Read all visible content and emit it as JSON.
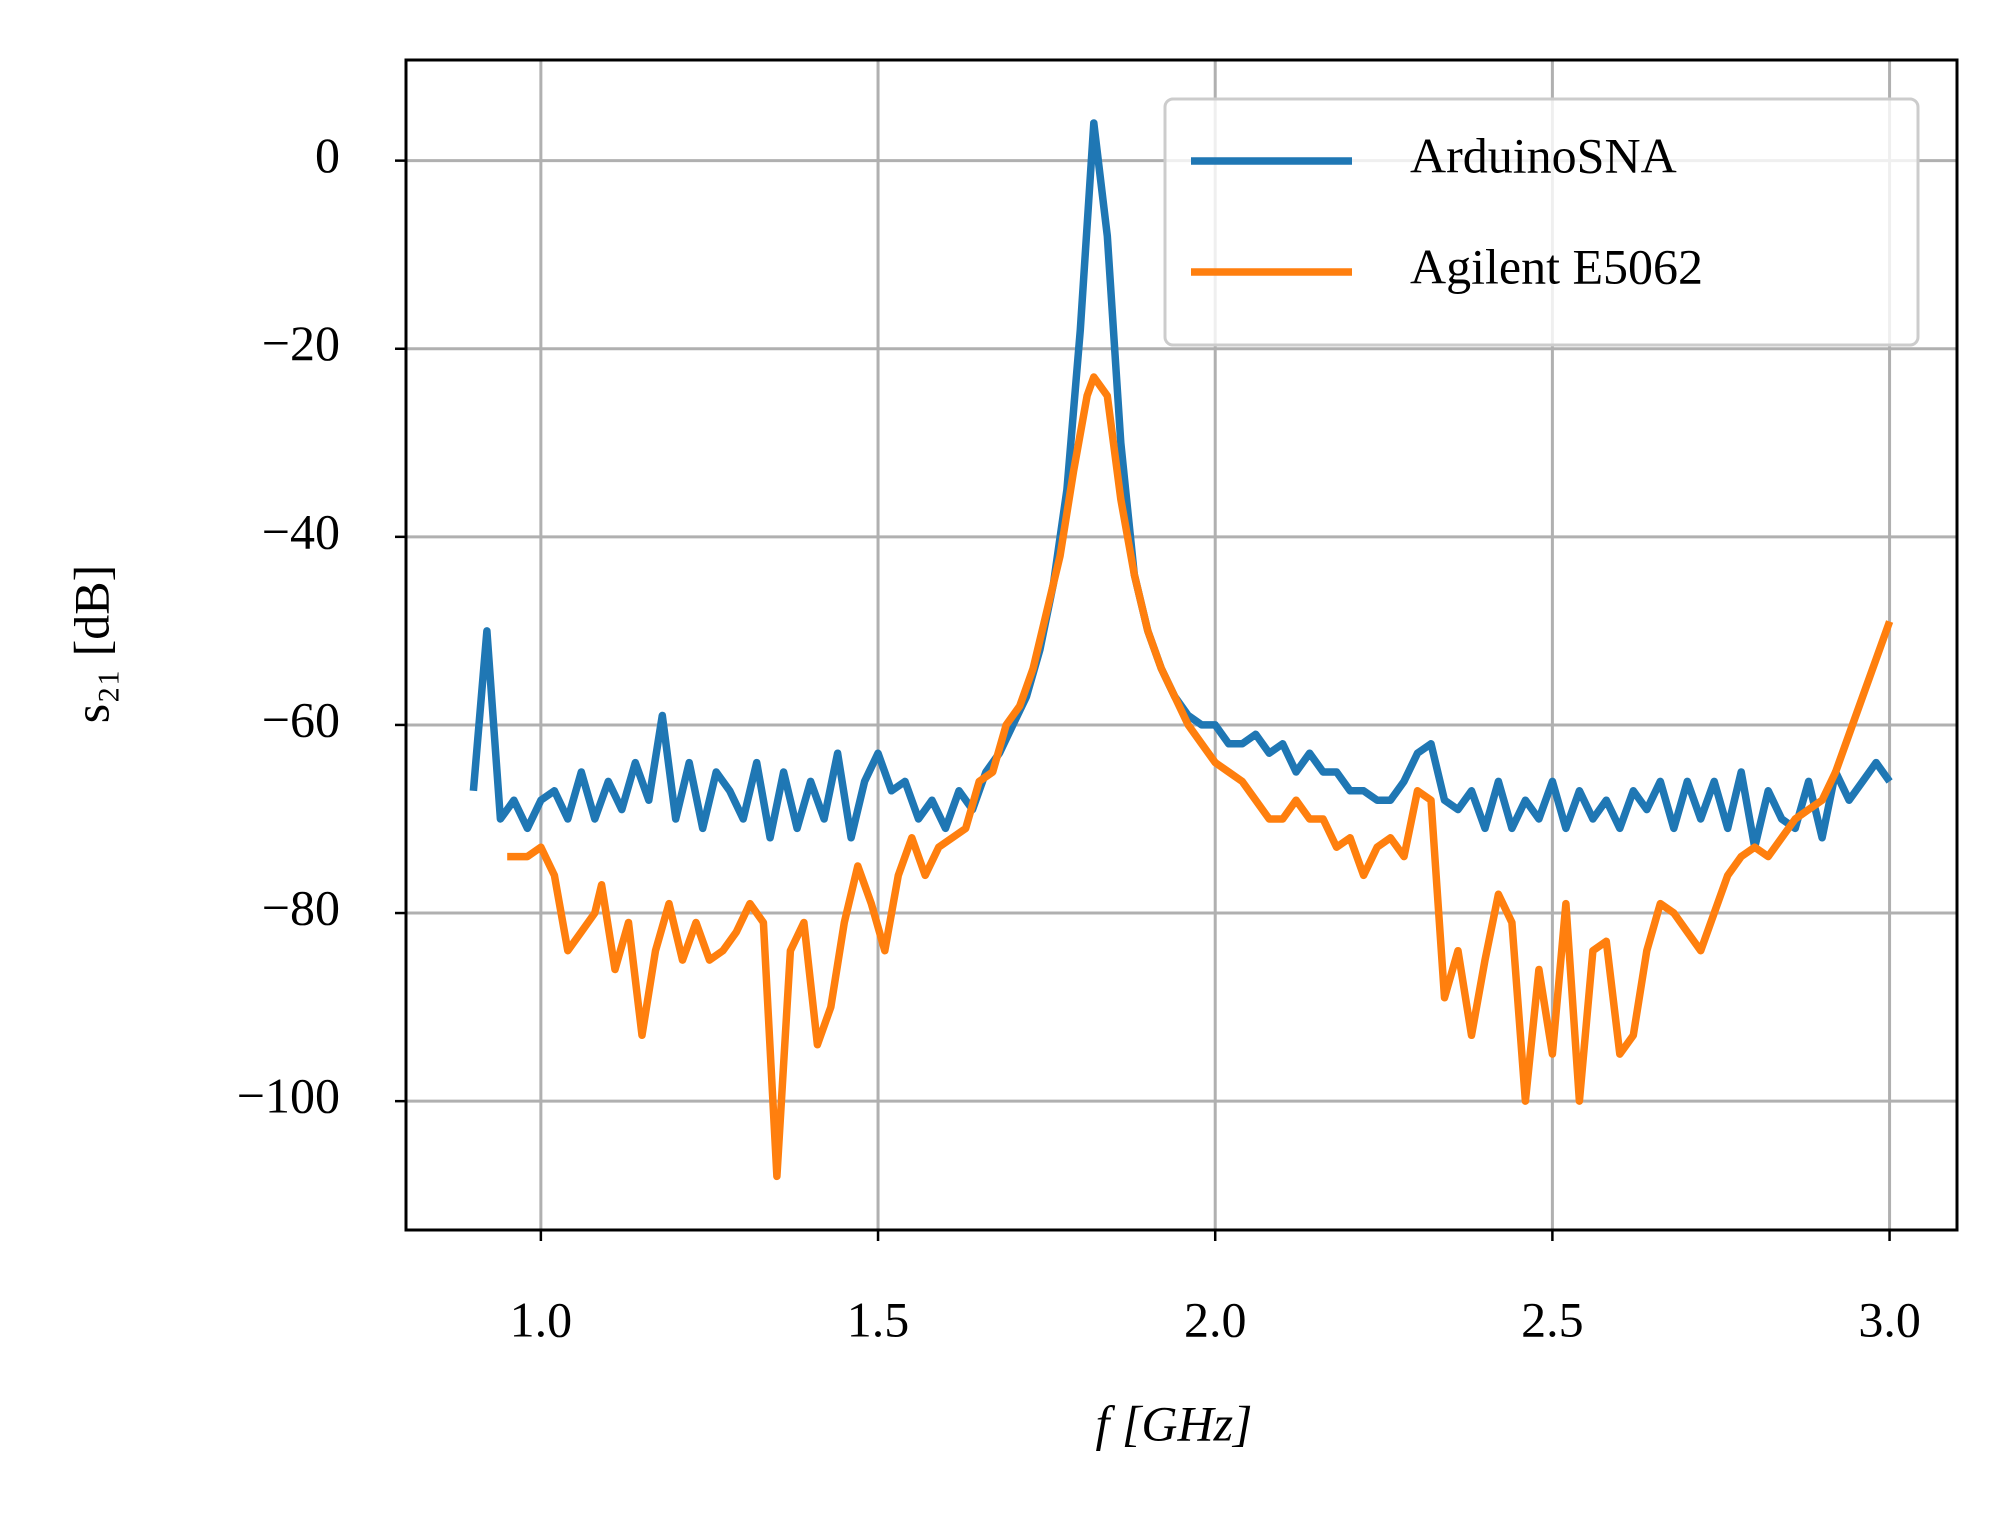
{
  "chart_data": {
    "type": "line",
    "xlabel": "f [GHz]",
    "ylabel": "s₂₁ [dB]",
    "xlim": [
      0.8,
      3.1
    ],
    "ylim": [
      -113.7,
      10.7
    ],
    "xticks": [
      {
        "value": 1,
        "label": "1.0"
      },
      {
        "value": 1.5,
        "label": "1.5"
      },
      {
        "value": 2,
        "label": "2.0"
      },
      {
        "value": 2.5,
        "label": "2.5"
      },
      {
        "value": 3,
        "label": "3.0"
      }
    ],
    "yticks": [
      0,
      {
        "value": -20,
        "label": "−20"
      },
      {
        "value": -40,
        "label": "−40"
      },
      {
        "value": -60,
        "label": "−60"
      },
      {
        "value": -80,
        "label": "−80"
      },
      {
        "value": -100,
        "label": "−100"
      }
    ],
    "grid": true,
    "legend": "upper right",
    "series": [
      {
        "name": "ArduinoSNA",
        "color": "#1f77b4",
        "x": [
          0.9,
          0.92,
          0.94,
          0.96,
          0.98,
          1.0,
          1.02,
          1.04,
          1.06,
          1.08,
          1.1,
          1.12,
          1.14,
          1.16,
          1.18,
          1.2,
          1.22,
          1.24,
          1.26,
          1.28,
          1.3,
          1.32,
          1.34,
          1.36,
          1.38,
          1.4,
          1.42,
          1.44,
          1.46,
          1.48,
          1.5,
          1.52,
          1.54,
          1.56,
          1.58,
          1.6,
          1.62,
          1.64,
          1.66,
          1.68,
          1.7,
          1.72,
          1.74,
          1.76,
          1.78,
          1.8,
          1.82,
          1.84,
          1.86,
          1.88,
          1.9,
          1.92,
          1.94,
          1.96,
          1.98,
          2.0,
          2.02,
          2.04,
          2.06,
          2.08,
          2.1,
          2.12,
          2.14,
          2.16,
          2.18,
          2.2,
          2.22,
          2.24,
          2.26,
          2.28,
          2.3,
          2.32,
          2.34,
          2.36,
          2.38,
          2.4,
          2.42,
          2.44,
          2.46,
          2.48,
          2.5,
          2.52,
          2.54,
          2.56,
          2.58,
          2.6,
          2.62,
          2.64,
          2.66,
          2.68,
          2.7,
          2.72,
          2.74,
          2.76,
          2.78,
          2.8,
          2.82,
          2.84,
          2.86,
          2.88,
          2.9,
          2.92,
          2.94,
          2.96,
          2.98,
          3.0
        ],
        "values": [
          -67,
          -50,
          -70,
          -68,
          -71,
          -68,
          -67,
          -70,
          -65,
          -70,
          -66,
          -69,
          -64,
          -68,
          -59,
          -70,
          -64,
          -71,
          -65,
          -67,
          -70,
          -64,
          -72,
          -65,
          -71,
          -66,
          -70,
          -63,
          -72,
          -66,
          -63,
          -67,
          -66,
          -70,
          -68,
          -71,
          -67,
          -69,
          -65,
          -63,
          -60,
          -57,
          -52,
          -45,
          -35,
          -18,
          4,
          -8,
          -30,
          -44,
          -50,
          -54,
          -57,
          -59,
          -60,
          -60,
          -62,
          -62,
          -61,
          -63,
          -62,
          -65,
          -63,
          -65,
          -65,
          -67,
          -67,
          -68,
          -68,
          -66,
          -63,
          -62,
          -68,
          -69,
          -67,
          -71,
          -66,
          -71,
          -68,
          -70,
          -66,
          -71,
          -67,
          -70,
          -68,
          -71,
          -67,
          -69,
          -66,
          -71,
          -66,
          -70,
          -66,
          -71,
          -65,
          -73,
          -67,
          -70,
          -71,
          -66,
          -72,
          -65,
          -68,
          -66,
          -64,
          -66
        ]
      },
      {
        "name": "Agilent E5062",
        "color": "#ff7f0e",
        "x": [
          0.95,
          0.98,
          1.0,
          1.02,
          1.04,
          1.06,
          1.08,
          1.09,
          1.11,
          1.13,
          1.15,
          1.17,
          1.19,
          1.21,
          1.23,
          1.25,
          1.27,
          1.29,
          1.31,
          1.33,
          1.35,
          1.37,
          1.39,
          1.41,
          1.43,
          1.45,
          1.47,
          1.49,
          1.51,
          1.53,
          1.55,
          1.57,
          1.59,
          1.61,
          1.63,
          1.65,
          1.67,
          1.69,
          1.71,
          1.73,
          1.75,
          1.77,
          1.79,
          1.81,
          1.82,
          1.84,
          1.86,
          1.88,
          1.9,
          1.92,
          1.94,
          1.96,
          1.98,
          2.0,
          2.02,
          2.04,
          2.06,
          2.08,
          2.1,
          2.12,
          2.14,
          2.16,
          2.18,
          2.2,
          2.22,
          2.24,
          2.26,
          2.28,
          2.3,
          2.32,
          2.34,
          2.36,
          2.38,
          2.4,
          2.42,
          2.44,
          2.46,
          2.48,
          2.5,
          2.52,
          2.54,
          2.56,
          2.58,
          2.6,
          2.62,
          2.64,
          2.66,
          2.68,
          2.7,
          2.72,
          2.74,
          2.76,
          2.78,
          2.8,
          2.82,
          2.84,
          2.86,
          2.88,
          2.9,
          2.92,
          2.94,
          2.96,
          2.98,
          3.0
        ],
        "values": [
          -74,
          -74,
          -73,
          -76,
          -84,
          -82,
          -80,
          -77,
          -86,
          -81,
          -93,
          -84,
          -79,
          -85,
          -81,
          -85,
          -84,
          -82,
          -79,
          -81,
          -108,
          -84,
          -81,
          -94,
          -90,
          -81,
          -75,
          -79,
          -84,
          -76,
          -72,
          -76,
          -73,
          -72,
          -71,
          -66,
          -65,
          -60,
          -58,
          -54,
          -48,
          -42,
          -33,
          -25,
          -23,
          -25,
          -36,
          -44,
          -50,
          -54,
          -57,
          -60,
          -62,
          -64,
          -65,
          -66,
          -68,
          -70,
          -70,
          -68,
          -70,
          -70,
          -73,
          -72,
          -76,
          -73,
          -72,
          -74,
          -67,
          -68,
          -89,
          -84,
          -93,
          -85,
          -78,
          -81,
          -100,
          -86,
          -95,
          -79,
          -100,
          -84,
          -83,
          -95,
          -93,
          -84,
          -79,
          -80,
          -82,
          -84,
          -80,
          -76,
          -74,
          -73,
          -74,
          -72,
          -70,
          -69,
          -68,
          -65,
          -61,
          -57,
          -53,
          -49
        ]
      }
    ]
  }
}
